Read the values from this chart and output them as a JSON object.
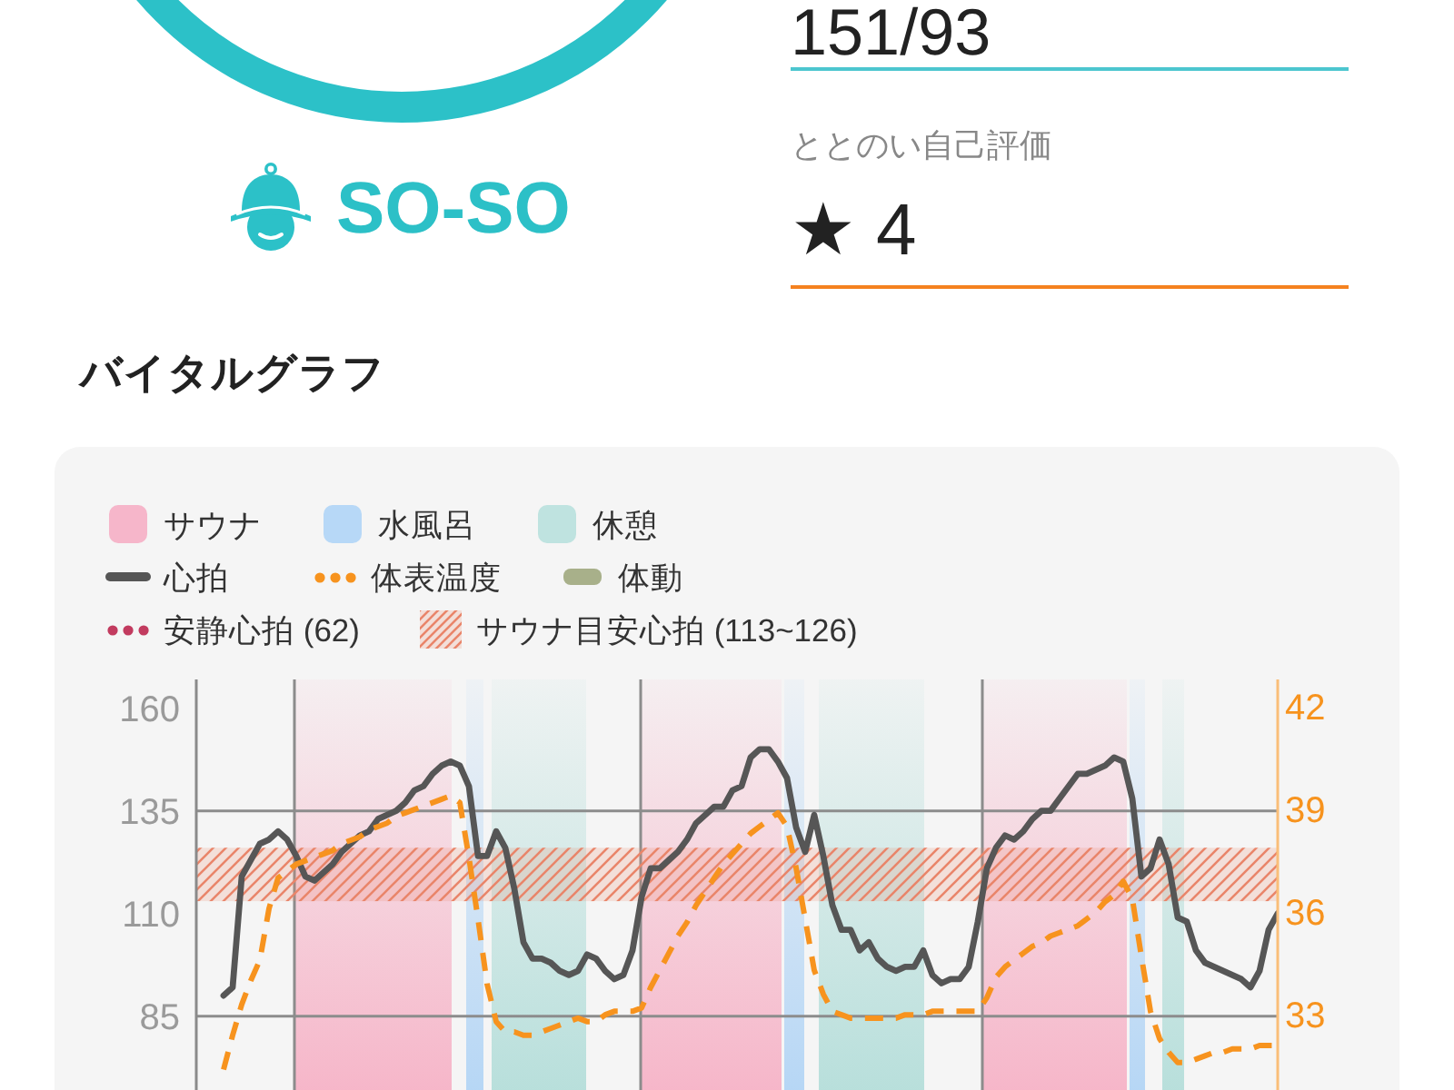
{
  "chart_data": {
    "type": "line",
    "title": "バイタルグラフ",
    "annotations": [
      "SO-SO",
      "151/93",
      "ととのい自己評価",
      "★ 4",
      "サウナ",
      "水風呂",
      "休憩",
      "体動",
      "安静心拍 (62)"
    ],
    "categories": [
      null,
      null,
      null,
      null,
      null,
      null,
      null,
      null,
      null,
      null,
      null,
      null,
      null,
      null,
      null,
      null,
      null,
      null,
      null,
      null,
      null,
      null,
      null,
      null,
      null,
      null,
      null,
      null,
      null,
      null,
      null,
      null,
      null,
      null,
      null,
      null,
      null,
      null,
      null,
      null,
      null,
      null,
      null,
      null,
      null,
      null,
      null,
      null,
      null,
      null,
      null,
      null,
      null,
      null,
      null,
      null,
      null,
      null,
      null,
      null,
      null,
      null,
      null,
      null,
      null,
      null,
      null,
      null,
      null,
      null,
      null,
      null,
      null,
      null,
      null,
      null,
      null,
      null,
      null,
      null,
      null,
      null,
      null,
      null,
      null,
      null,
      null,
      null,
      null,
      null,
      null,
      null,
      null,
      null,
      null,
      null,
      null,
      null,
      null,
      null,
      null,
      null,
      null,
      null,
      null,
      null,
      null,
      null,
      null,
      null,
      null,
      null,
      null,
      null,
      null,
      null,
      null,
      null,
      null,
      null
    ],
    "series": [
      {
        "name": "心拍",
        "color": "#565656",
        "values": [
          null,
          null,
          null,
          90,
          92,
          119,
          123,
          127,
          128,
          130,
          128,
          124,
          119,
          118,
          120,
          122,
          125,
          127,
          129,
          130,
          133,
          134,
          135,
          137,
          140,
          141,
          144,
          146,
          147,
          146,
          141,
          124,
          124,
          130,
          126,
          116,
          103,
          99,
          99,
          98,
          96,
          95,
          96,
          100,
          99,
          96,
          94,
          95,
          101,
          114,
          121,
          121,
          123,
          125,
          128,
          132,
          134,
          136,
          136,
          140,
          141,
          148,
          150,
          150,
          147,
          143,
          131,
          125,
          134,
          124,
          112,
          106,
          106,
          101,
          103,
          99,
          97,
          96,
          97,
          97,
          101,
          95,
          93,
          94,
          94,
          97,
          108,
          121,
          126,
          129,
          128,
          130,
          133,
          135,
          135,
          138,
          141,
          144,
          144,
          145,
          146,
          148,
          147,
          138,
          119,
          121,
          128,
          122,
          109,
          108,
          101,
          98,
          97,
          96,
          95,
          94,
          92,
          96,
          106,
          110
        ]
      },
      {
        "name": "体表温度",
        "color": "#f7931e",
        "axis": "y2",
        "line_style": "dashed",
        "values": [
          null,
          null,
          null,
          31.4,
          32.4,
          33.3,
          34.0,
          34.6,
          36.1,
          37.0,
          37.2,
          37.4,
          37.5,
          37.6,
          37.7,
          37.8,
          38.0,
          38.1,
          38.2,
          38.4,
          38.5,
          38.6,
          38.8,
          38.9,
          39.0,
          39.1,
          39.2,
          39.3,
          39.4,
          39.2,
          37.6,
          35.8,
          33.9,
          32.8,
          32.5,
          32.5,
          32.4,
          32.4,
          32.5,
          32.6,
          32.7,
          32.8,
          32.9,
          32.8,
          32.8,
          33.0,
          33.1,
          33.1,
          33.1,
          33.2,
          33.8,
          34.3,
          34.8,
          35.3,
          35.7,
          36.2,
          36.6,
          37.0,
          37.4,
          37.7,
          38.0,
          38.3,
          38.5,
          38.7,
          38.9,
          38.5,
          37.3,
          35.8,
          34.3,
          33.6,
          33.1,
          33.0,
          32.9,
          32.9,
          32.9,
          32.9,
          32.9,
          32.9,
          33.0,
          33.0,
          33.0,
          33.1,
          33.1,
          33.1,
          33.1,
          33.1,
          33.1,
          33.5,
          34.1,
          34.4,
          34.6,
          34.8,
          35.0,
          35.1,
          35.3,
          35.4,
          35.5,
          35.6,
          35.8,
          36.0,
          36.3,
          36.5,
          36.9,
          36.4,
          34.7,
          33.1,
          32.3,
          31.9,
          31.6,
          31.6,
          31.7,
          31.8,
          31.9,
          31.9,
          32.0,
          32.0,
          32.0,
          32.1,
          32.1,
          32.1
        ]
      }
    ],
    "ylim": [
      67,
      167
    ],
    "yticks": [
      85,
      110,
      135,
      160
    ],
    "y2lim": [
      30.8,
      42.8
    ],
    "y2ticks": [
      33,
      36,
      39,
      42
    ],
    "bands": [
      {
        "axis": "y",
        "from": 113,
        "to": 126,
        "label": "サウナ目安心拍 (113~126)",
        "color": "#e9856a"
      }
    ],
    "ref_lines": [
      {
        "axis": "y",
        "value": 85,
        "color": "#8c8c8c"
      },
      {
        "axis": "y",
        "value": 135,
        "color": "#8c8c8c"
      }
    ],
    "grid": "x",
    "legend": "top left"
  }
}
